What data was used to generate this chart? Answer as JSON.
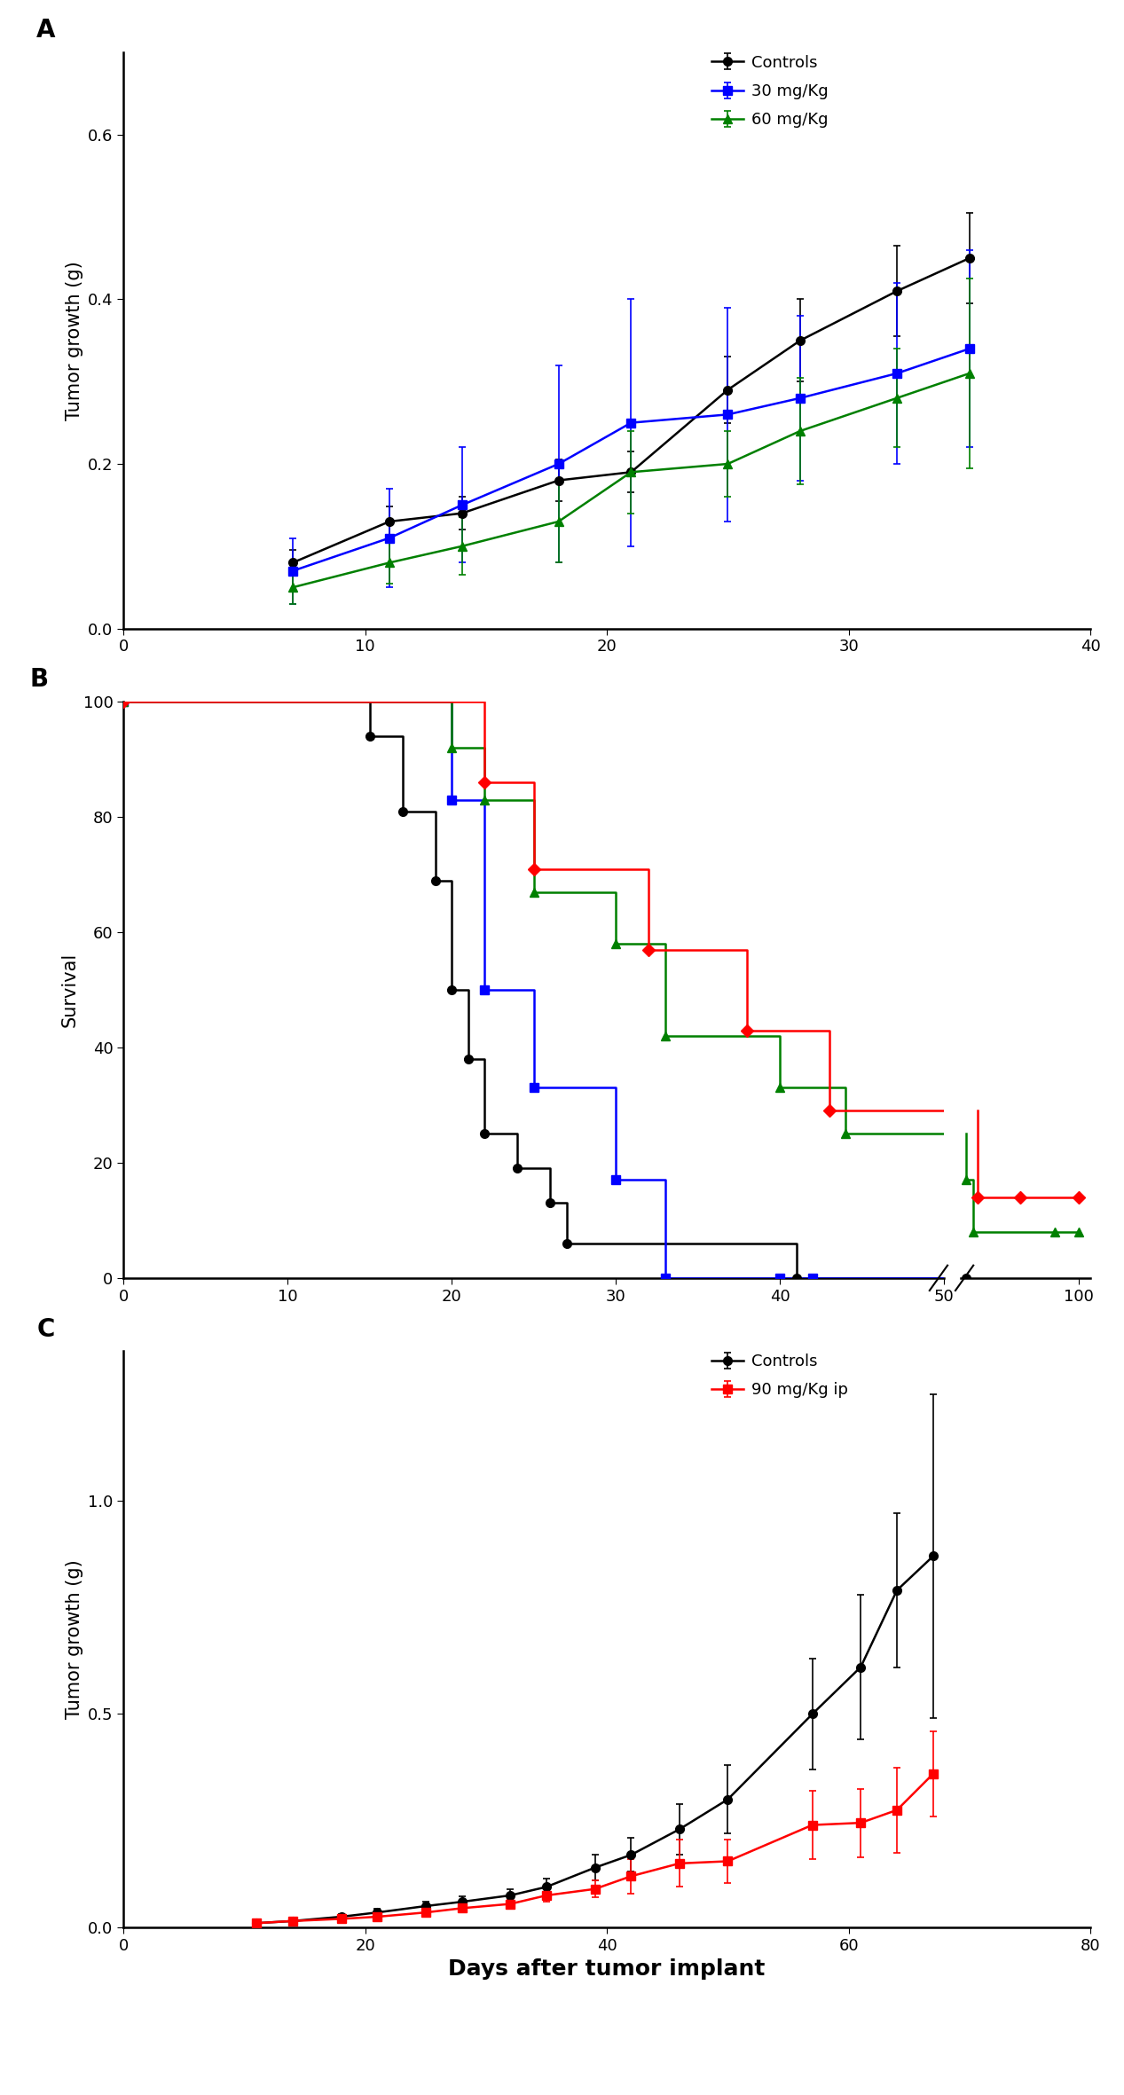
{
  "panel_A": {
    "ylabel": "Tumor growth (g)",
    "xlim": [
      0,
      40
    ],
    "ylim": [
      0.0,
      0.7
    ],
    "yticks": [
      0.0,
      0.2,
      0.4,
      0.6
    ],
    "xticks": [
      0,
      10,
      20,
      30,
      40
    ],
    "controls": {
      "x": [
        7,
        11,
        14,
        18,
        21,
        25,
        28,
        32,
        35
      ],
      "y": [
        0.08,
        0.13,
        0.14,
        0.18,
        0.19,
        0.29,
        0.35,
        0.41,
        0.45
      ],
      "yerr": [
        0.015,
        0.018,
        0.02,
        0.025,
        0.025,
        0.04,
        0.05,
        0.055,
        0.055
      ],
      "color": "#000000",
      "marker": "o",
      "label": "Controls"
    },
    "dose30": {
      "x": [
        7,
        11,
        14,
        18,
        21,
        25,
        28,
        32,
        35
      ],
      "y": [
        0.07,
        0.11,
        0.15,
        0.2,
        0.25,
        0.26,
        0.28,
        0.31,
        0.34
      ],
      "yerr": [
        0.04,
        0.06,
        0.07,
        0.12,
        0.15,
        0.13,
        0.1,
        0.11,
        0.12
      ],
      "color": "#0000FF",
      "marker": "s",
      "label": "30 mg/Kg"
    },
    "dose60": {
      "x": [
        7,
        11,
        14,
        18,
        21,
        25,
        28,
        32,
        35
      ],
      "y": [
        0.05,
        0.08,
        0.1,
        0.13,
        0.19,
        0.2,
        0.24,
        0.28,
        0.31
      ],
      "yerr": [
        0.02,
        0.025,
        0.035,
        0.05,
        0.05,
        0.04,
        0.065,
        0.06,
        0.115
      ],
      "color": "#008000",
      "marker": "^",
      "label": "60 mg/Kg"
    }
  },
  "panel_B": {
    "ylabel": "Survival",
    "ylim": [
      0,
      100
    ],
    "yticks": [
      0,
      20,
      40,
      60,
      80,
      100
    ],
    "controls": {
      "x_raw": [
        0,
        15,
        17,
        19,
        20,
        21,
        22,
        24,
        26,
        27,
        41,
        52
      ],
      "y_raw": [
        100,
        94,
        81,
        69,
        50,
        38,
        25,
        19,
        13,
        6,
        0,
        0
      ],
      "color": "#000000",
      "marker": "o",
      "label": "Controls"
    },
    "dose30": {
      "x_raw": [
        0,
        20,
        22,
        25,
        30,
        33,
        40,
        42
      ],
      "y_raw": [
        100,
        83,
        50,
        33,
        17,
        0,
        0,
        0
      ],
      "color": "#0000FF",
      "marker": "s",
      "label": "30 mg/Kg"
    },
    "dose60": {
      "x_raw": [
        0,
        20,
        22,
        25,
        30,
        33,
        40,
        44,
        52,
        55,
        90,
        100
      ],
      "y_raw": [
        100,
        92,
        83,
        67,
        58,
        42,
        33,
        25,
        17,
        8,
        8,
        8
      ],
      "color": "#008000",
      "marker": "^",
      "label": "60 mg/Kg"
    },
    "dose90": {
      "x_raw": [
        0,
        22,
        25,
        32,
        38,
        43,
        57,
        75,
        100
      ],
      "y_raw": [
        100,
        86,
        71,
        57,
        43,
        29,
        14,
        14,
        14
      ],
      "color": "#FF0000",
      "marker": "D",
      "label": "90 mg/Kg"
    }
  },
  "panel_C": {
    "ylabel": "Tumor growth (g)",
    "xlabel": "Days after tumor implant",
    "xlim": [
      0,
      80
    ],
    "ylim": [
      0.0,
      1.35
    ],
    "yticks": [
      0.0,
      0.5,
      1.0
    ],
    "xticks": [
      0,
      20,
      40,
      60,
      80
    ],
    "controls": {
      "x": [
        11,
        14,
        18,
        21,
        25,
        28,
        32,
        35,
        39,
        42,
        46,
        50,
        57,
        61,
        64,
        67
      ],
      "y": [
        0.01,
        0.015,
        0.025,
        0.035,
        0.05,
        0.06,
        0.075,
        0.095,
        0.14,
        0.17,
        0.23,
        0.3,
        0.5,
        0.61,
        0.79,
        0.87
      ],
      "yerr": [
        0.005,
        0.005,
        0.007,
        0.008,
        0.01,
        0.012,
        0.015,
        0.02,
        0.03,
        0.04,
        0.06,
        0.08,
        0.13,
        0.17,
        0.18,
        0.38
      ],
      "color": "#000000",
      "marker": "o",
      "label": "Controls"
    },
    "dose90ip": {
      "x": [
        11,
        14,
        18,
        21,
        25,
        28,
        32,
        35,
        39,
        42,
        46,
        50,
        57,
        61,
        64,
        67
      ],
      "y": [
        0.01,
        0.015,
        0.02,
        0.025,
        0.035,
        0.045,
        0.055,
        0.075,
        0.09,
        0.12,
        0.15,
        0.155,
        0.24,
        0.245,
        0.275,
        0.36
      ],
      "yerr": [
        0.004,
        0.004,
        0.005,
        0.006,
        0.009,
        0.009,
        0.01,
        0.014,
        0.02,
        0.04,
        0.055,
        0.05,
        0.08,
        0.08,
        0.1,
        0.1
      ],
      "color": "#FF0000",
      "marker": "s",
      "label": "90 mg/Kg ip"
    }
  },
  "figure_bg": "#FFFFFF",
  "axes_bg": "#FFFFFF",
  "linewidth": 1.8,
  "markersize": 7,
  "capsize": 3,
  "elinewidth": 1.2,
  "font_size": 13,
  "label_font_size": 15,
  "panel_label_size": 20
}
